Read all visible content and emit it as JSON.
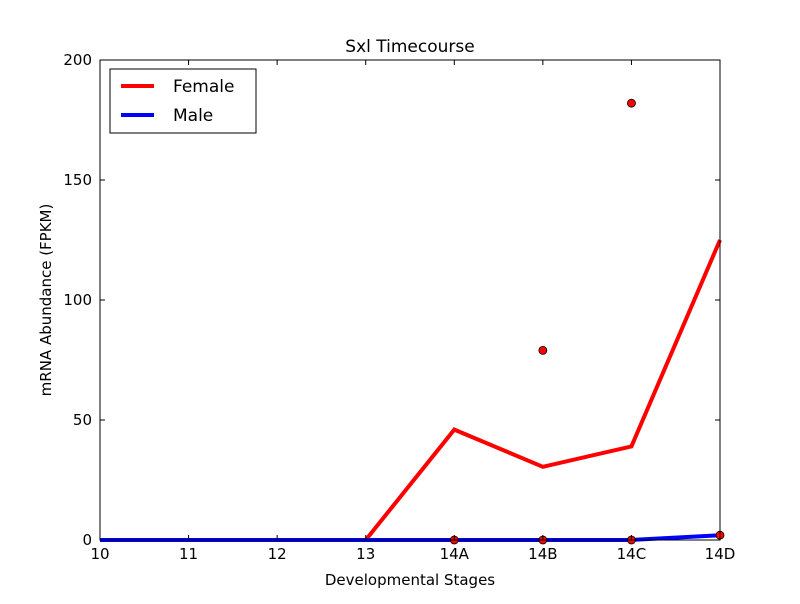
{
  "chart_data": {
    "type": "line",
    "title": "Sxl Timecourse",
    "xlabel": "Developmental Stages",
    "ylabel": "mRNA Abundance (FPKM)",
    "categories": [
      "10",
      "11",
      "12",
      "13",
      "14A",
      "14B",
      "14C",
      "14D"
    ],
    "ylim": [
      0,
      200
    ],
    "yticks": [
      0,
      50,
      100,
      150,
      200
    ],
    "grid": false,
    "legend_position": "top-left",
    "series": [
      {
        "name": "Female",
        "color": "#ff0000",
        "values": [
          0,
          0,
          0,
          0,
          46,
          30.5,
          39,
          125
        ]
      },
      {
        "name": "Male",
        "color": "#0000ff",
        "values": [
          0,
          0,
          0,
          0,
          0,
          0,
          0,
          2
        ]
      }
    ],
    "points": [
      {
        "x": "14A",
        "y": 0,
        "color": "#ff0000"
      },
      {
        "x": "14B",
        "y": 79,
        "color": "#ff0000"
      },
      {
        "x": "14B",
        "y": 0,
        "color": "#ff0000"
      },
      {
        "x": "14C",
        "y": 182,
        "color": "#ff0000"
      },
      {
        "x": "14C",
        "y": 0,
        "color": "#ff0000"
      },
      {
        "x": "14D",
        "y": 2,
        "color": "#ff0000"
      }
    ]
  }
}
